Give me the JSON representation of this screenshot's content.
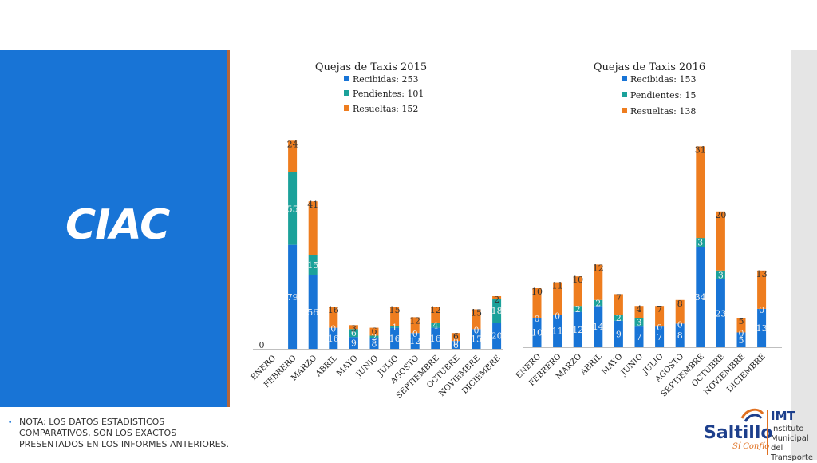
{
  "side": {
    "title": "CIAC"
  },
  "note": {
    "bullet": "•",
    "lines": [
      "NOTA: LOS DATOS ESTADISTICOS",
      "COMPARATIVOS, SON LOS EXACTOS",
      "PRESENTADOS EN LOS INFORMES ANTERIORES."
    ]
  },
  "logo": {
    "name": "Saltillo",
    "tagline": "Sí Confío",
    "acronym": "IMT",
    "institute": [
      "Instituto",
      "Municipal del",
      "Transporte"
    ]
  },
  "colors": {
    "received": "#1874d6",
    "pending": "#1ba19a",
    "resolved": "#ee7d1f",
    "panel": "#1874d6"
  },
  "chart_data": [
    {
      "type": "bar",
      "stacked": true,
      "title": "Quejas de Taxis 2015",
      "legend": [
        "Recibidas: 253",
        "Pendientes: 101",
        "Resueltas: 152"
      ],
      "categories": [
        "ENERO",
        "FEBRERO",
        "MARZO",
        "ABRIL",
        "MAYO",
        "JUNIO",
        "JULIO",
        "AGOSTO",
        "SEPTIEMBRE",
        "OCTUBRE",
        "NOVIEMBRE",
        "DICIEMBRE"
      ],
      "series": [
        {
          "name": "Recibidas",
          "values": [
            0,
            79,
            56,
            16,
            9,
            8,
            16,
            12,
            16,
            6,
            15,
            20
          ]
        },
        {
          "name": "Pendientes",
          "values": [
            0,
            55,
            15,
            0,
            6,
            2,
            1,
            0,
            4,
            0,
            0,
            18
          ]
        },
        {
          "name": "Resueltas",
          "values": [
            0,
            24,
            41,
            16,
            3,
            6,
            15,
            12,
            12,
            6,
            15,
            2
          ]
        }
      ]
    },
    {
      "type": "bar",
      "stacked": true,
      "title": "Quejas de Taxis 2016",
      "legend": [
        "Recibidas: 153",
        "Pendientes: 15",
        "Resueltas: 138"
      ],
      "categories": [
        "ENERO",
        "FEBRERO",
        "MARZO",
        "ABRIL",
        "MAYO",
        "JUNIO",
        "JULIO",
        "AGOSTO",
        "SEPTIEMBRE",
        "OCTUBRE",
        "NOVIEMBRE",
        "DICIEMBRE"
      ],
      "series": [
        {
          "name": "Recibidas",
          "values": [
            10,
            11,
            12,
            14,
            9,
            7,
            7,
            8,
            34,
            23,
            5,
            13
          ]
        },
        {
          "name": "Pendientes",
          "values": [
            0,
            0,
            2,
            2,
            2,
            3,
            0,
            0,
            3,
            3,
            0,
            0
          ]
        },
        {
          "name": "Resueltas",
          "values": [
            10,
            11,
            10,
            12,
            7,
            4,
            7,
            8,
            31,
            20,
            5,
            13
          ]
        }
      ]
    }
  ]
}
